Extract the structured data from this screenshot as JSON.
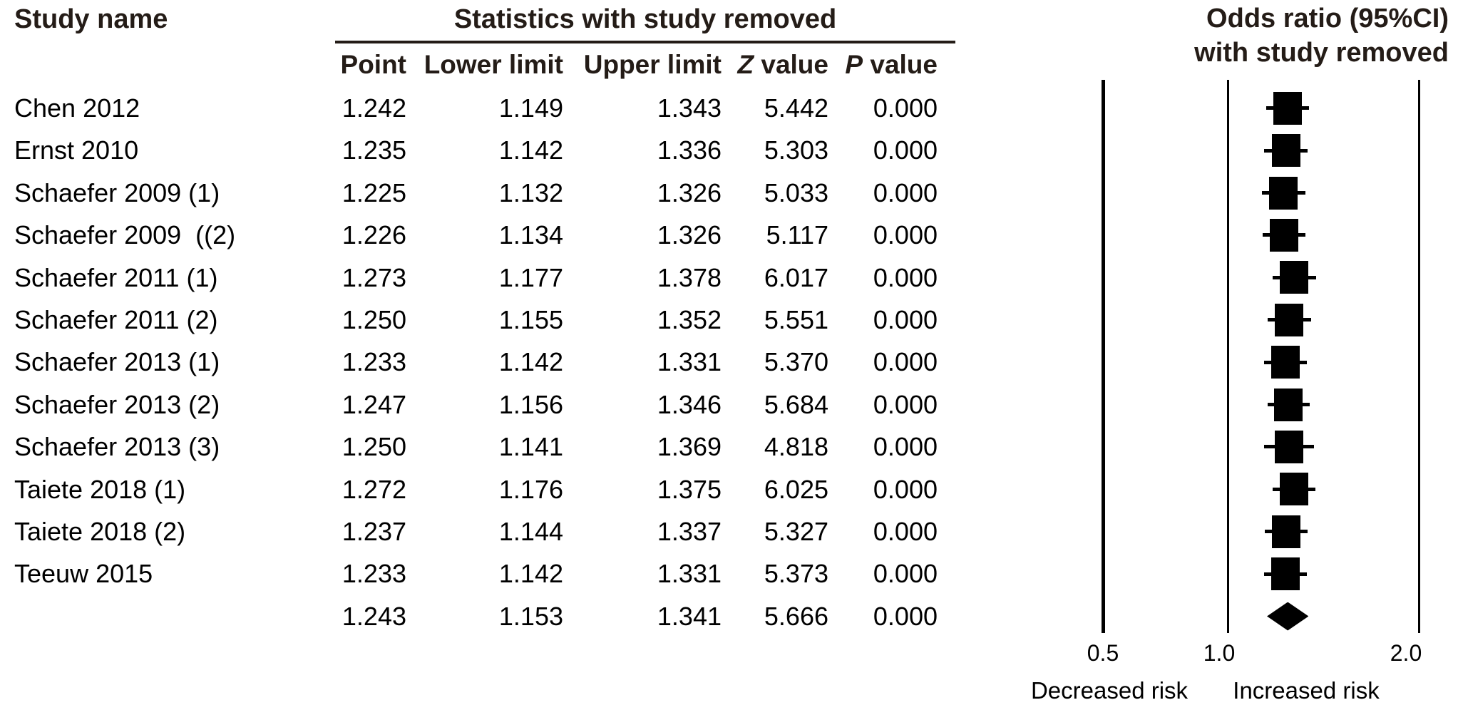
{
  "header": {
    "study_name": "Study name",
    "stats_title": "Statistics with study removed",
    "or_title_line1": "Odds ratio (95%CI)",
    "or_title_line2": "with study removed",
    "columns": {
      "point": "Point",
      "lower": "Lower limit",
      "upper": "Upper limit",
      "z_italic": "Z",
      "z_rest": " value",
      "p_italic": "P",
      "p_rest": " value"
    }
  },
  "chart_data": {
    "type": "forest",
    "effect_measure": "Odds ratio (95%CI) with study removed",
    "x_axis": {
      "scale": "log",
      "ticks": [
        {
          "label": "0.5",
          "value": 0.5
        },
        {
          "label": "1.0",
          "value": 1.0
        },
        {
          "label": "2.0",
          "value": 2.0
        }
      ],
      "left_region_label": "Decreased risk",
      "right_region_label": "Increased risk"
    },
    "rows": [
      {
        "study": "Chen 2012",
        "point": "1.242",
        "lower": "1.149",
        "upper": "1.343",
        "z": "5.442",
        "p": "0.000",
        "marker": "square"
      },
      {
        "study": "Ernst 2010",
        "point": "1.235",
        "lower": "1.142",
        "upper": "1.336",
        "z": "5.303",
        "p": "0.000",
        "marker": "square"
      },
      {
        "study": "Schaefer 2009 (1)",
        "point": "1.225",
        "lower": "1.132",
        "upper": "1.326",
        "z": "5.033",
        "p": "0.000",
        "marker": "square"
      },
      {
        "study": "Schaefer 2009  ((2)",
        "point": "1.226",
        "lower": "1.134",
        "upper": "1.326",
        "z": "5.117",
        "p": "0.000",
        "marker": "square"
      },
      {
        "study": "Schaefer 2011 (1)",
        "point": "1.273",
        "lower": "1.177",
        "upper": "1.378",
        "z": "6.017",
        "p": "0.000",
        "marker": "square"
      },
      {
        "study": "Schaefer 2011 (2)",
        "point": "1.250",
        "lower": "1.155",
        "upper": "1.352",
        "z": "5.551",
        "p": "0.000",
        "marker": "square"
      },
      {
        "study": "Schaefer 2013 (1)",
        "point": "1.233",
        "lower": "1.142",
        "upper": "1.331",
        "z": "5.370",
        "p": "0.000",
        "marker": "square"
      },
      {
        "study": "Schaefer 2013 (2)",
        "point": "1.247",
        "lower": "1.156",
        "upper": "1.346",
        "z": "5.684",
        "p": "0.000",
        "marker": "square"
      },
      {
        "study": "Schaefer 2013 (3)",
        "point": "1.250",
        "lower": "1.141",
        "upper": "1.369",
        "z": "4.818",
        "p": "0.000",
        "marker": "square"
      },
      {
        "study": "Taiete 2018 (1)",
        "point": "1.272",
        "lower": "1.176",
        "upper": "1.375",
        "z": "6.025",
        "p": "0.000",
        "marker": "square"
      },
      {
        "study": "Taiete 2018 (2)",
        "point": "1.237",
        "lower": "1.144",
        "upper": "1.337",
        "z": "5.327",
        "p": "0.000",
        "marker": "square"
      },
      {
        "study": "Teeuw 2015",
        "point": "1.233",
        "lower": "1.142",
        "upper": "1.331",
        "z": "5.373",
        "p": "0.000",
        "marker": "square"
      },
      {
        "study": "",
        "point": "1.243",
        "lower": "1.153",
        "upper": "1.341",
        "z": "5.666",
        "p": "0.000",
        "marker": "diamond"
      }
    ]
  },
  "colors": {
    "ink": "#000000",
    "header_ink": "#241c17"
  }
}
